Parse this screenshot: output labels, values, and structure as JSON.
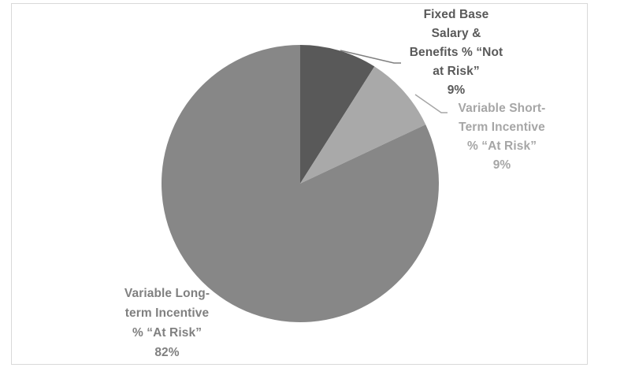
{
  "chart_data": {
    "type": "pie",
    "title": "",
    "unit": "%",
    "legend": "none",
    "direction": "clockwise",
    "start_angle_deg": 0,
    "background": "#ffffff",
    "plot_border_color": "#d9d9d9",
    "leader_line_colors": [
      "#7f7f7f",
      "#a6a6a6"
    ],
    "slices": [
      {
        "label": "Fixed Base Salary & Benefits % “Not at Risk”",
        "value": 9,
        "color": "#595959",
        "label_color": "#595959",
        "label_lines": [
          "Fixed Base",
          "Salary &",
          "Benefits % “Not",
          "at Risk”",
          "9%"
        ]
      },
      {
        "label": "Variable Short-Term Incentive % “At Risk”",
        "value": 9,
        "color": "#a9a9a9",
        "label_color": "#a6a6a6",
        "label_lines": [
          "Variable Short-",
          "Term Incentive",
          "% “At Risk”",
          "9%"
        ]
      },
      {
        "label": "Variable Long-term Incentive % “At Risk”",
        "value": 82,
        "color": "#878787",
        "label_color": "#808080",
        "label_lines": [
          "Variable Long-",
          "term Incentive",
          "% “At Risk”",
          "82%"
        ]
      }
    ]
  }
}
